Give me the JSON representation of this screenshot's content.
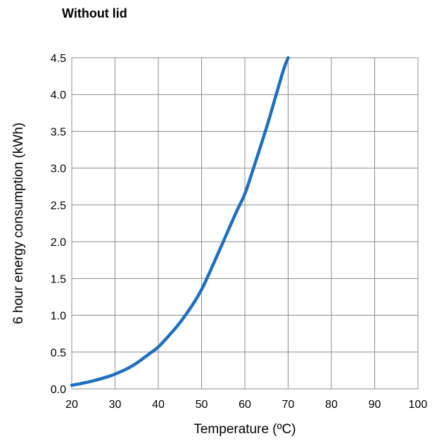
{
  "chart_data": {
    "type": "line",
    "title": "Without lid",
    "xlabel": "Temperature (ºC)",
    "ylabel": "6 hour energy consumption (kWh)",
    "xlim": [
      20,
      100
    ],
    "ylim": [
      0,
      4.5
    ],
    "x_ticks": [
      "20",
      "30",
      "40",
      "50",
      "60",
      "70",
      "80",
      "90",
      "100"
    ],
    "y_ticks": [
      "0.0",
      "0.5",
      "1.0",
      "1.5",
      "2.0",
      "2.5",
      "3.0",
      "3.5",
      "4.0",
      "4.5"
    ],
    "grid": true,
    "line_color": "#1f6fbf",
    "series": [
      {
        "x": [
          20,
          22,
          25,
          28,
          30,
          33,
          35,
          38,
          40,
          43,
          45,
          48,
          50,
          52,
          55,
          58,
          60,
          62,
          65,
          67,
          69,
          70
        ],
        "y": [
          0.05,
          0.07,
          0.11,
          0.16,
          0.2,
          0.28,
          0.35,
          0.48,
          0.57,
          0.76,
          0.9,
          1.15,
          1.35,
          1.6,
          2.0,
          2.4,
          2.65,
          3.0,
          3.55,
          3.95,
          4.35,
          4.5
        ]
      }
    ]
  }
}
